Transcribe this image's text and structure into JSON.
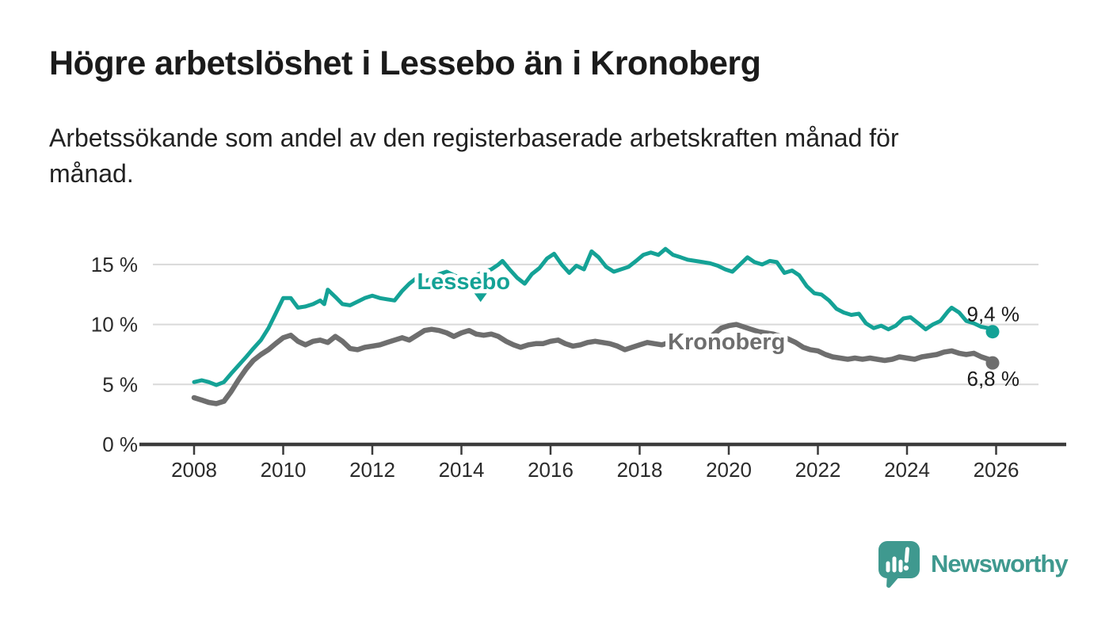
{
  "header": {
    "title": "Högre arbetslöshet i Lessebo än i Kronoberg",
    "subtitle": "Arbetssökande som andel av den registerbaserade arbetskraften månad för månad."
  },
  "chart_data": {
    "type": "line",
    "title": "Högre arbetslöshet i Lessebo än i Kronoberg",
    "xlabel": "",
    "ylabel": "",
    "x_axis": {
      "ticks": [
        2008,
        2010,
        2012,
        2014,
        2016,
        2018,
        2020,
        2022,
        2024,
        2026
      ],
      "range": [
        2007.5,
        2026.8
      ]
    },
    "y_axis": {
      "ticks": [
        {
          "value": 0,
          "label": "0 %"
        },
        {
          "value": 5,
          "label": "5 %"
        },
        {
          "value": 10,
          "label": "10 %"
        },
        {
          "value": 15,
          "label": "15 %"
        }
      ],
      "range": [
        0,
        17.3
      ],
      "grid": true
    },
    "legend_position": "inline-labels",
    "colors": {
      "grid": "#d9d9d9",
      "axis": "#3b3b3b",
      "tick_label": "#2b2b2b",
      "value_label": "#1b1b1b"
    },
    "series": [
      {
        "name": "Lessebo",
        "color": "#14a296",
        "line_width": 5,
        "label": {
          "year": 2014.05,
          "value": 12.95
        },
        "pointer": {
          "year": 2014.43,
          "value": 12.6
        },
        "end": {
          "value": 9.4,
          "label": "9,4 %",
          "label_position": "above"
        },
        "points": [
          [
            2008.0,
            5.2
          ],
          [
            2008.17,
            5.35
          ],
          [
            2008.33,
            5.2
          ],
          [
            2008.5,
            4.95
          ],
          [
            2008.67,
            5.2
          ],
          [
            2008.83,
            5.9
          ],
          [
            2009.0,
            6.6
          ],
          [
            2009.17,
            7.3
          ],
          [
            2009.33,
            8.0
          ],
          [
            2009.5,
            8.7
          ],
          [
            2009.67,
            9.7
          ],
          [
            2009.83,
            10.9
          ],
          [
            2010.0,
            12.2
          ],
          [
            2010.17,
            12.2
          ],
          [
            2010.33,
            11.4
          ],
          [
            2010.5,
            11.5
          ],
          [
            2010.67,
            11.7
          ],
          [
            2010.83,
            12.0
          ],
          [
            2010.92,
            11.7
          ],
          [
            2011.0,
            12.9
          ],
          [
            2011.17,
            12.3
          ],
          [
            2011.33,
            11.7
          ],
          [
            2011.5,
            11.6
          ],
          [
            2011.67,
            11.9
          ],
          [
            2011.83,
            12.2
          ],
          [
            2012.0,
            12.4
          ],
          [
            2012.17,
            12.2
          ],
          [
            2012.33,
            12.1
          ],
          [
            2012.5,
            12.0
          ],
          [
            2012.67,
            12.8
          ],
          [
            2012.83,
            13.4
          ],
          [
            2013.0,
            13.9
          ],
          [
            2013.17,
            13.6
          ],
          [
            2013.33,
            13.8
          ],
          [
            2013.5,
            14.2
          ],
          [
            2013.67,
            14.4
          ],
          [
            2013.83,
            14.1
          ],
          [
            2014.0,
            13.9
          ],
          [
            2014.17,
            13.8
          ],
          [
            2014.33,
            14.1
          ],
          [
            2014.5,
            14.4
          ],
          [
            2014.67,
            14.6
          ],
          [
            2014.83,
            15.0
          ],
          [
            2014.92,
            15.3
          ],
          [
            2015.08,
            14.6
          ],
          [
            2015.25,
            13.9
          ],
          [
            2015.42,
            13.4
          ],
          [
            2015.58,
            14.2
          ],
          [
            2015.75,
            14.7
          ],
          [
            2015.92,
            15.5
          ],
          [
            2016.08,
            15.9
          ],
          [
            2016.25,
            15.0
          ],
          [
            2016.42,
            14.3
          ],
          [
            2016.58,
            14.9
          ],
          [
            2016.75,
            14.6
          ],
          [
            2016.92,
            16.1
          ],
          [
            2017.08,
            15.6
          ],
          [
            2017.25,
            14.8
          ],
          [
            2017.42,
            14.4
          ],
          [
            2017.58,
            14.6
          ],
          [
            2017.75,
            14.8
          ],
          [
            2017.92,
            15.3
          ],
          [
            2018.08,
            15.8
          ],
          [
            2018.25,
            16.0
          ],
          [
            2018.42,
            15.8
          ],
          [
            2018.58,
            16.3
          ],
          [
            2018.75,
            15.8
          ],
          [
            2018.92,
            15.6
          ],
          [
            2019.08,
            15.4
          ],
          [
            2019.25,
            15.3
          ],
          [
            2019.42,
            15.2
          ],
          [
            2019.58,
            15.1
          ],
          [
            2019.75,
            14.9
          ],
          [
            2019.92,
            14.6
          ],
          [
            2020.08,
            14.4
          ],
          [
            2020.25,
            15.0
          ],
          [
            2020.42,
            15.6
          ],
          [
            2020.58,
            15.2
          ],
          [
            2020.75,
            15.0
          ],
          [
            2020.92,
            15.3
          ],
          [
            2021.08,
            15.2
          ],
          [
            2021.25,
            14.3
          ],
          [
            2021.42,
            14.5
          ],
          [
            2021.58,
            14.1
          ],
          [
            2021.75,
            13.2
          ],
          [
            2021.92,
            12.6
          ],
          [
            2022.08,
            12.5
          ],
          [
            2022.25,
            12.0
          ],
          [
            2022.42,
            11.3
          ],
          [
            2022.58,
            11.0
          ],
          [
            2022.75,
            10.8
          ],
          [
            2022.92,
            10.9
          ],
          [
            2023.08,
            10.1
          ],
          [
            2023.25,
            9.7
          ],
          [
            2023.42,
            9.9
          ],
          [
            2023.58,
            9.6
          ],
          [
            2023.75,
            9.9
          ],
          [
            2023.92,
            10.5
          ],
          [
            2024.08,
            10.6
          ],
          [
            2024.25,
            10.1
          ],
          [
            2024.42,
            9.6
          ],
          [
            2024.58,
            10.0
          ],
          [
            2024.75,
            10.3
          ],
          [
            2024.92,
            11.1
          ],
          [
            2025.0,
            11.4
          ],
          [
            2025.17,
            11.0
          ],
          [
            2025.33,
            10.3
          ],
          [
            2025.5,
            10.1
          ],
          [
            2025.67,
            9.8
          ],
          [
            2025.83,
            9.7
          ],
          [
            2025.92,
            9.4
          ]
        ]
      },
      {
        "name": "Kronoberg",
        "color": "#6e6e6e",
        "line_width": 6.5,
        "label": {
          "year": 2019.95,
          "value": 7.93
        },
        "pointer": null,
        "end": {
          "value": 6.8,
          "label": "6,8 %",
          "label_position": "below"
        },
        "points": [
          [
            2008.0,
            3.9
          ],
          [
            2008.17,
            3.7
          ],
          [
            2008.33,
            3.5
          ],
          [
            2008.5,
            3.4
          ],
          [
            2008.67,
            3.6
          ],
          [
            2008.83,
            4.4
          ],
          [
            2009.0,
            5.4
          ],
          [
            2009.17,
            6.3
          ],
          [
            2009.33,
            7.0
          ],
          [
            2009.5,
            7.5
          ],
          [
            2009.67,
            7.9
          ],
          [
            2009.83,
            8.4
          ],
          [
            2010.0,
            8.9
          ],
          [
            2010.17,
            9.1
          ],
          [
            2010.33,
            8.6
          ],
          [
            2010.5,
            8.3
          ],
          [
            2010.67,
            8.6
          ],
          [
            2010.83,
            8.7
          ],
          [
            2011.0,
            8.5
          ],
          [
            2011.17,
            9.0
          ],
          [
            2011.33,
            8.6
          ],
          [
            2011.5,
            8.0
          ],
          [
            2011.67,
            7.9
          ],
          [
            2011.83,
            8.1
          ],
          [
            2012.0,
            8.2
          ],
          [
            2012.17,
            8.3
          ],
          [
            2012.33,
            8.5
          ],
          [
            2012.5,
            8.7
          ],
          [
            2012.67,
            8.9
          ],
          [
            2012.83,
            8.7
          ],
          [
            2013.0,
            9.1
          ],
          [
            2013.17,
            9.5
          ],
          [
            2013.33,
            9.6
          ],
          [
            2013.5,
            9.5
          ],
          [
            2013.67,
            9.3
          ],
          [
            2013.83,
            9.0
          ],
          [
            2014.0,
            9.3
          ],
          [
            2014.17,
            9.5
          ],
          [
            2014.33,
            9.2
          ],
          [
            2014.5,
            9.1
          ],
          [
            2014.67,
            9.2
          ],
          [
            2014.83,
            9.0
          ],
          [
            2015.0,
            8.6
          ],
          [
            2015.17,
            8.3
          ],
          [
            2015.33,
            8.1
          ],
          [
            2015.5,
            8.3
          ],
          [
            2015.67,
            8.4
          ],
          [
            2015.83,
            8.4
          ],
          [
            2016.0,
            8.6
          ],
          [
            2016.17,
            8.7
          ],
          [
            2016.33,
            8.4
          ],
          [
            2016.5,
            8.2
          ],
          [
            2016.67,
            8.3
          ],
          [
            2016.83,
            8.5
          ],
          [
            2017.0,
            8.6
          ],
          [
            2017.17,
            8.5
          ],
          [
            2017.33,
            8.4
          ],
          [
            2017.5,
            8.2
          ],
          [
            2017.67,
            7.9
          ],
          [
            2017.83,
            8.1
          ],
          [
            2018.0,
            8.3
          ],
          [
            2018.17,
            8.5
          ],
          [
            2018.33,
            8.4
          ],
          [
            2018.5,
            8.3
          ],
          [
            2018.67,
            8.5
          ],
          [
            2018.83,
            8.4
          ],
          [
            2019.0,
            8.5
          ],
          [
            2019.17,
            8.4
          ],
          [
            2019.33,
            8.5
          ],
          [
            2019.5,
            8.7
          ],
          [
            2019.67,
            9.2
          ],
          [
            2019.83,
            9.7
          ],
          [
            2020.0,
            9.9
          ],
          [
            2020.17,
            10.0
          ],
          [
            2020.33,
            9.8
          ],
          [
            2020.5,
            9.6
          ],
          [
            2020.67,
            9.4
          ],
          [
            2020.83,
            9.3
          ],
          [
            2021.0,
            9.2
          ],
          [
            2021.17,
            9.0
          ],
          [
            2021.33,
            8.8
          ],
          [
            2021.5,
            8.5
          ],
          [
            2021.67,
            8.1
          ],
          [
            2021.83,
            7.9
          ],
          [
            2022.0,
            7.8
          ],
          [
            2022.17,
            7.5
          ],
          [
            2022.33,
            7.3
          ],
          [
            2022.5,
            7.2
          ],
          [
            2022.67,
            7.1
          ],
          [
            2022.83,
            7.2
          ],
          [
            2023.0,
            7.1
          ],
          [
            2023.17,
            7.2
          ],
          [
            2023.33,
            7.1
          ],
          [
            2023.5,
            7.0
          ],
          [
            2023.67,
            7.1
          ],
          [
            2023.83,
            7.3
          ],
          [
            2024.0,
            7.2
          ],
          [
            2024.17,
            7.1
          ],
          [
            2024.33,
            7.3
          ],
          [
            2024.5,
            7.4
          ],
          [
            2024.67,
            7.5
          ],
          [
            2024.83,
            7.7
          ],
          [
            2025.0,
            7.8
          ],
          [
            2025.17,
            7.6
          ],
          [
            2025.33,
            7.5
          ],
          [
            2025.5,
            7.6
          ],
          [
            2025.67,
            7.3
          ],
          [
            2025.83,
            7.1
          ],
          [
            2025.92,
            6.8
          ]
        ]
      }
    ]
  },
  "footer": {
    "brand": "Newsworthy",
    "brand_color": "#3f998f"
  }
}
